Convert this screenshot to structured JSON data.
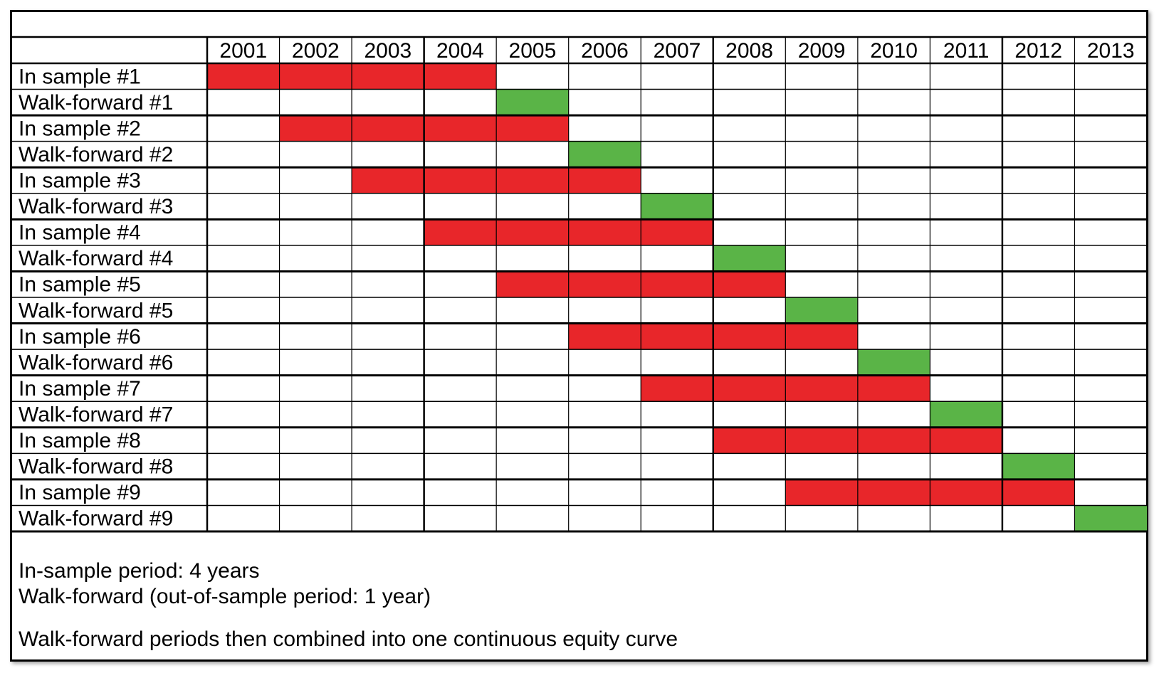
{
  "years": [
    "2001",
    "2002",
    "2003",
    "2004",
    "2005",
    "2006",
    "2007",
    "2008",
    "2009",
    "2010",
    "2011",
    "2012",
    "2013"
  ],
  "rows": [
    {
      "label": "In sample #1",
      "kind": "in-sample",
      "start": "2001",
      "end": "2004"
    },
    {
      "label": "Walk-forward #1",
      "kind": "walk-forward",
      "start": "2005",
      "end": "2005"
    },
    {
      "label": "In sample #2",
      "kind": "in-sample",
      "start": "2002",
      "end": "2005"
    },
    {
      "label": "Walk-forward #2",
      "kind": "walk-forward",
      "start": "2006",
      "end": "2006"
    },
    {
      "label": "In sample #3",
      "kind": "in-sample",
      "start": "2003",
      "end": "2006"
    },
    {
      "label": "Walk-forward #3",
      "kind": "walk-forward",
      "start": "2007",
      "end": "2007"
    },
    {
      "label": "In sample #4",
      "kind": "in-sample",
      "start": "2004",
      "end": "2007"
    },
    {
      "label": "Walk-forward #4",
      "kind": "walk-forward",
      "start": "2008",
      "end": "2008"
    },
    {
      "label": "In sample #5",
      "kind": "in-sample",
      "start": "2005",
      "end": "2008"
    },
    {
      "label": "Walk-forward #5",
      "kind": "walk-forward",
      "start": "2009",
      "end": "2009"
    },
    {
      "label": "In sample #6",
      "kind": "in-sample",
      "start": "2006",
      "end": "2009"
    },
    {
      "label": "Walk-forward #6",
      "kind": "walk-forward",
      "start": "2010",
      "end": "2010"
    },
    {
      "label": "In sample #7",
      "kind": "in-sample",
      "start": "2007",
      "end": "2010"
    },
    {
      "label": "Walk-forward #7",
      "kind": "walk-forward",
      "start": "2011",
      "end": "2011"
    },
    {
      "label": "In sample #8",
      "kind": "in-sample",
      "start": "2008",
      "end": "2011"
    },
    {
      "label": "Walk-forward #8",
      "kind": "walk-forward",
      "start": "2012",
      "end": "2012"
    },
    {
      "label": "In sample #9",
      "kind": "in-sample",
      "start": "2009",
      "end": "2012"
    },
    {
      "label": "Walk-forward #9",
      "kind": "walk-forward",
      "start": "2013",
      "end": "2013"
    }
  ],
  "colors": {
    "in_sample": "#e8262a",
    "walk_forward": "#5ab447"
  },
  "notes": {
    "line1": "In-sample period: 4 years",
    "line2": "Walk-forward (out-of-sample period: 1 year)",
    "line3": "Walk-forward periods then combined into one continuous equity curve"
  }
}
